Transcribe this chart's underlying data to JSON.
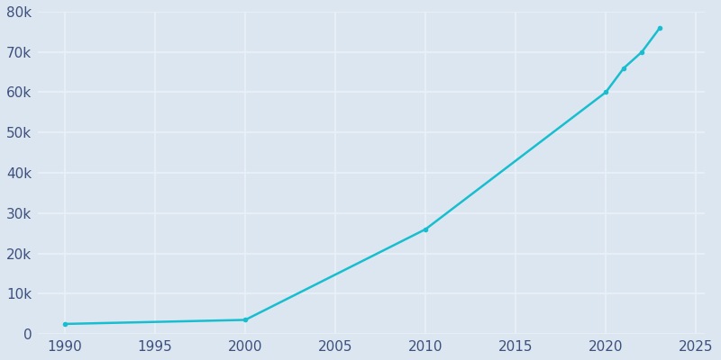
{
  "years": [
    1990,
    2000,
    2010,
    2020,
    2021,
    2022,
    2023
  ],
  "population": [
    2500,
    3500,
    26000,
    60000,
    66000,
    70000,
    76000
  ],
  "line_color": "#17becf",
  "bg_color": "#dce6f0",
  "plot_bg_color": "#dce6f0",
  "grid_color": "#eaf0f8",
  "tick_color": "#3d4f7c",
  "ylim": [
    0,
    80000
  ],
  "xlim": [
    1988.5,
    2025.5
  ],
  "yticks": [
    0,
    10000,
    20000,
    30000,
    40000,
    50000,
    60000,
    70000,
    80000
  ],
  "xticks": [
    1990,
    1995,
    2000,
    2005,
    2010,
    2015,
    2020,
    2025
  ],
  "line_width": 1.8,
  "marker": "o",
  "marker_size": 4
}
